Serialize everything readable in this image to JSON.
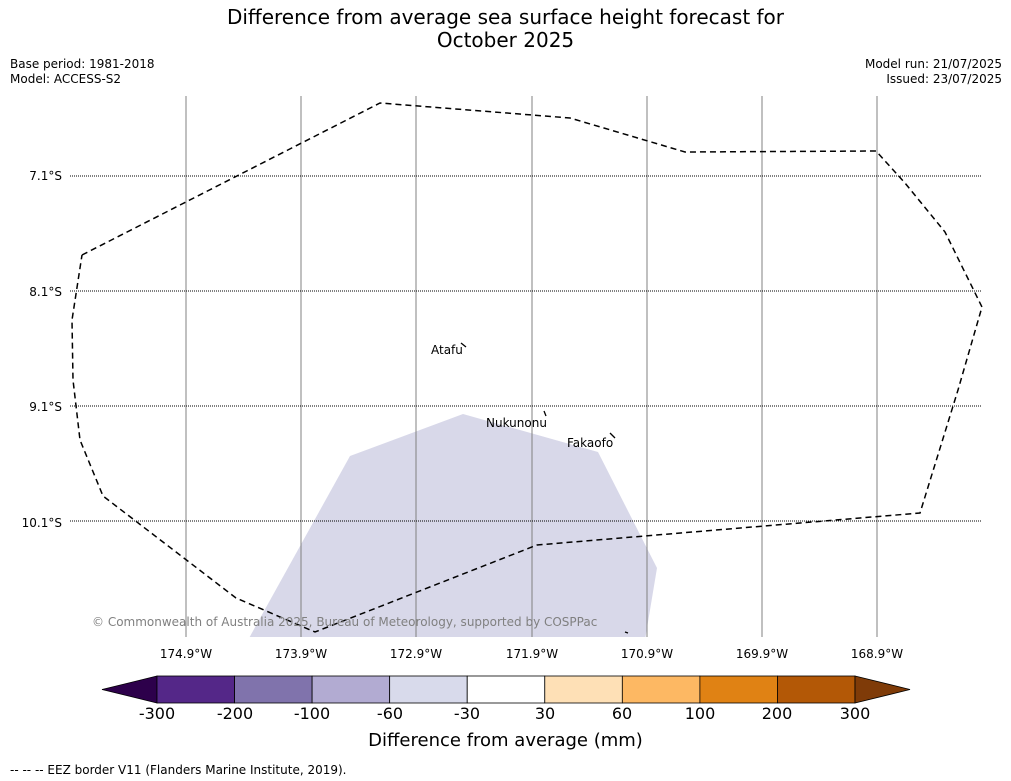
{
  "title_line1": "Difference from average sea surface height forecast for",
  "title_line2": "October 2025",
  "meta_left": {
    "base_period": "Base period: 1981-2018",
    "model": "Model: ACCESS-S2"
  },
  "meta_right": {
    "model_run": "Model run: 21/07/2025",
    "issued": "Issued: 23/07/2025"
  },
  "map": {
    "lat_labels": [
      "7.1°S",
      "8.1°S",
      "9.1°S",
      "10.1°S"
    ],
    "lon_labels": [
      "174.9°W",
      "173.9°W",
      "172.9°W",
      "171.9°W",
      "170.9°W",
      "169.9°W",
      "168.9°W"
    ],
    "places": [
      {
        "name": "Atafu"
      },
      {
        "name": "Nukunonu"
      },
      {
        "name": "Fakaofo"
      }
    ],
    "copyright": "© Commonwealth of Australia 2025, Bureau of Meteorology, supported by COSPPac",
    "anomaly_fill_color": "#d8d8e9",
    "eez_line_color": "#000000"
  },
  "colorbar": {
    "title": "Difference from average (mm)",
    "tick_labels": [
      "-300",
      "-200",
      "-100",
      "-60",
      "-30",
      "30",
      "60",
      "100",
      "200",
      "300"
    ],
    "colors": [
      "#2d004b",
      "#542788",
      "#8073ac",
      "#b2abd2",
      "#d8daeb",
      "#ffffff",
      "#fee0b6",
      "#fdb863",
      "#e08214",
      "#b35806",
      "#7f3b08"
    ]
  },
  "footnote": "--  --  -- EEZ border V11 (Flanders Marine Institute, 2019)."
}
